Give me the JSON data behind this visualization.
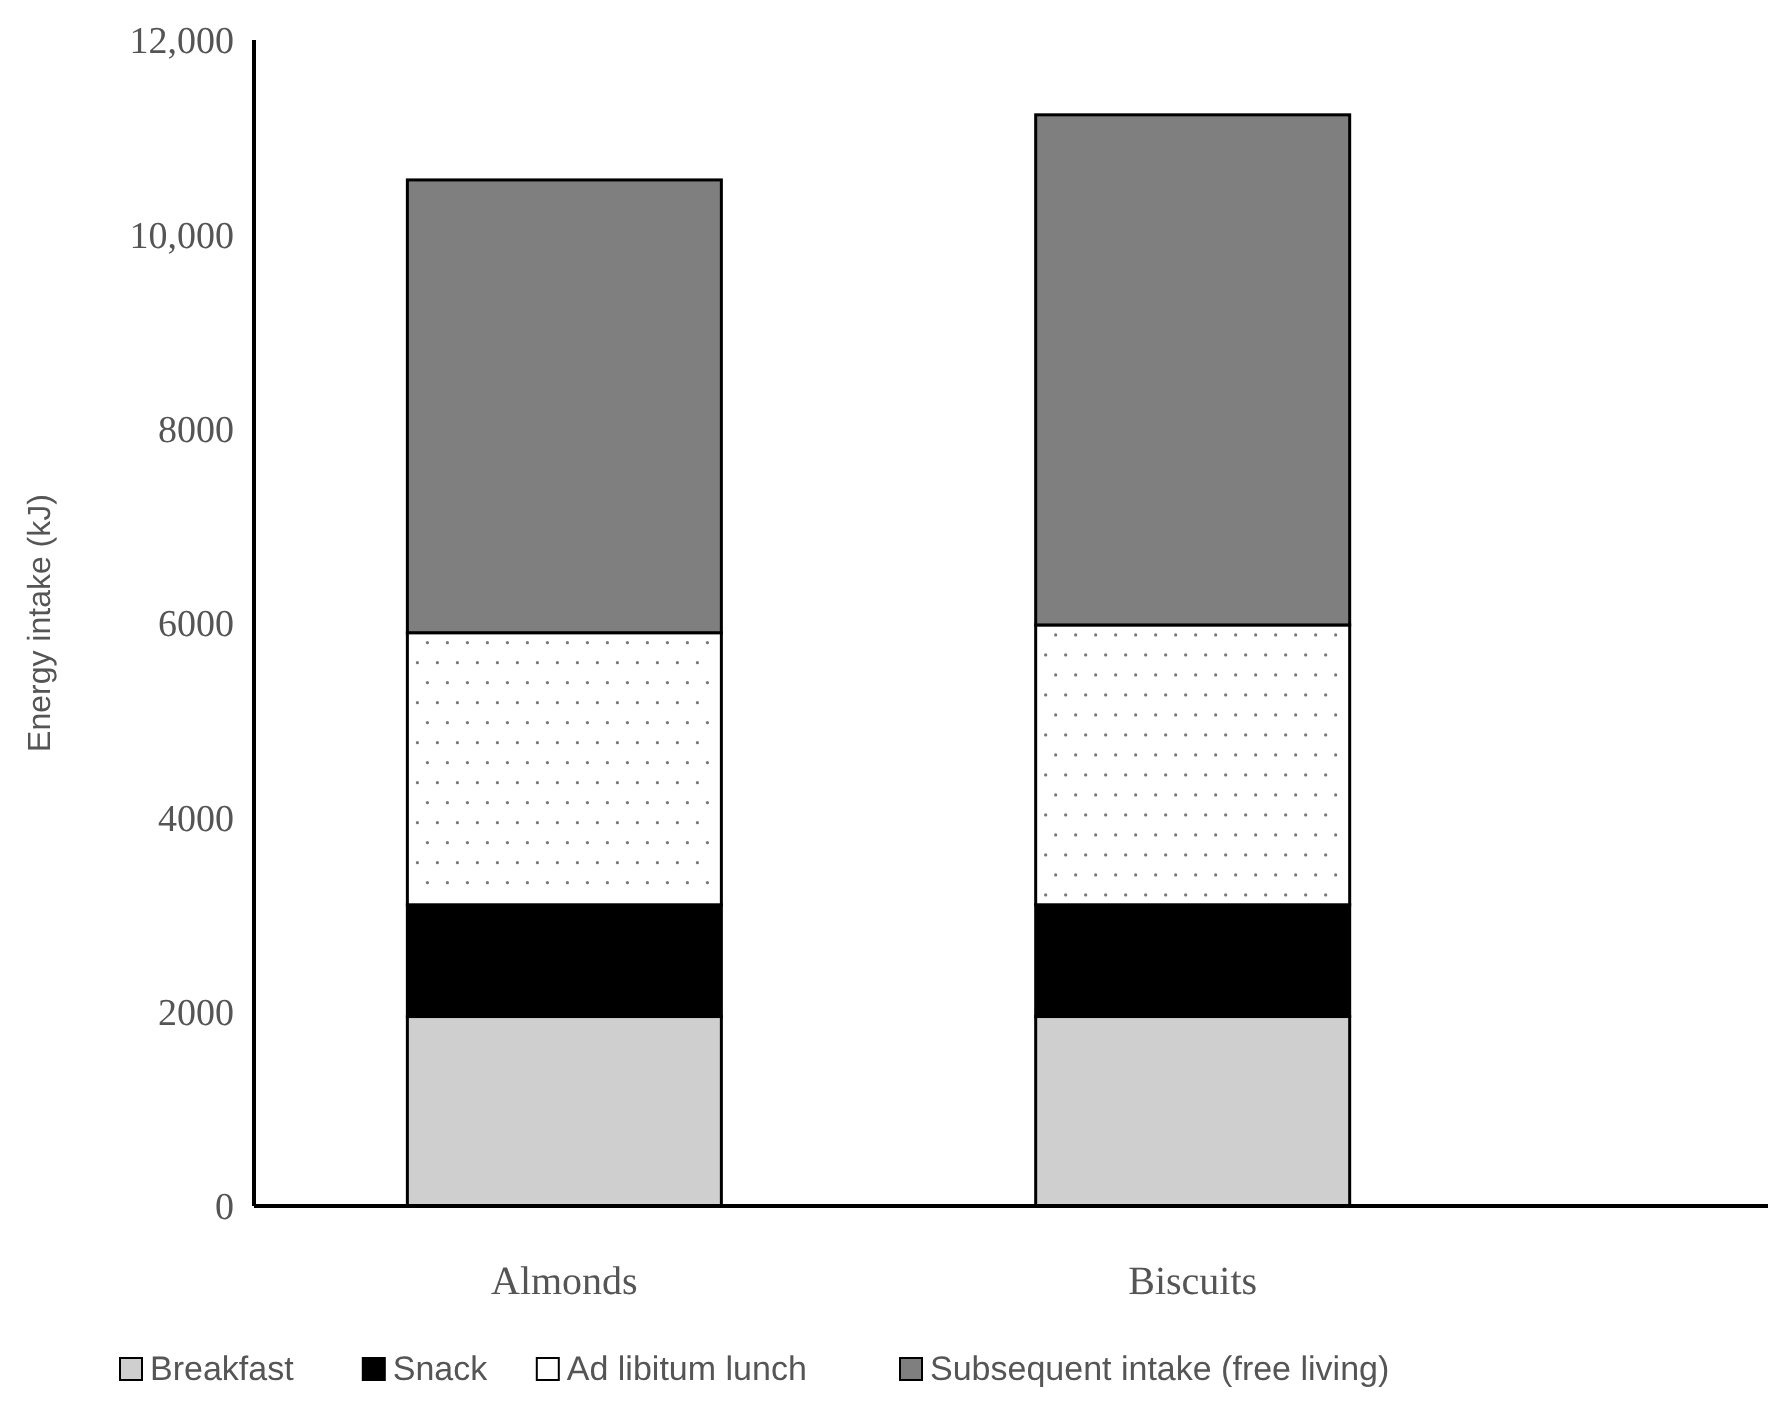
{
  "chart_data": {
    "type": "bar",
    "stacked": true,
    "ylabel": "Energy intake (kJ)",
    "categories": [
      "Almonds",
      "Biscuits"
    ],
    "series": [
      {
        "name": "Breakfast",
        "color": "#d0cfd0",
        "values": [
          1950,
          1950
        ]
      },
      {
        "name": "Snack",
        "color": "#000000",
        "values": [
          1150,
          1150
        ]
      },
      {
        "name": "Ad libitum lunch",
        "color": "#ffffff",
        "values": [
          2800,
          2880
        ]
      },
      {
        "name": "Subsequent intake (free living)",
        "color": "#7f7f7f",
        "values": [
          4660,
          5250
        ]
      }
    ],
    "ylim": [
      0,
      12000
    ],
    "yticks": [
      0,
      {
        "value": 2000,
        "label": "2000"
      },
      {
        "value": 4000,
        "label": "4000"
      },
      {
        "value": 6000,
        "label": "6000"
      },
      {
        "value": 8000,
        "label": "8000"
      },
      {
        "value": 10000,
        "label": "10,000"
      },
      {
        "value": 12000,
        "label": "12,000"
      }
    ],
    "grid": false,
    "legend": "bottom"
  }
}
